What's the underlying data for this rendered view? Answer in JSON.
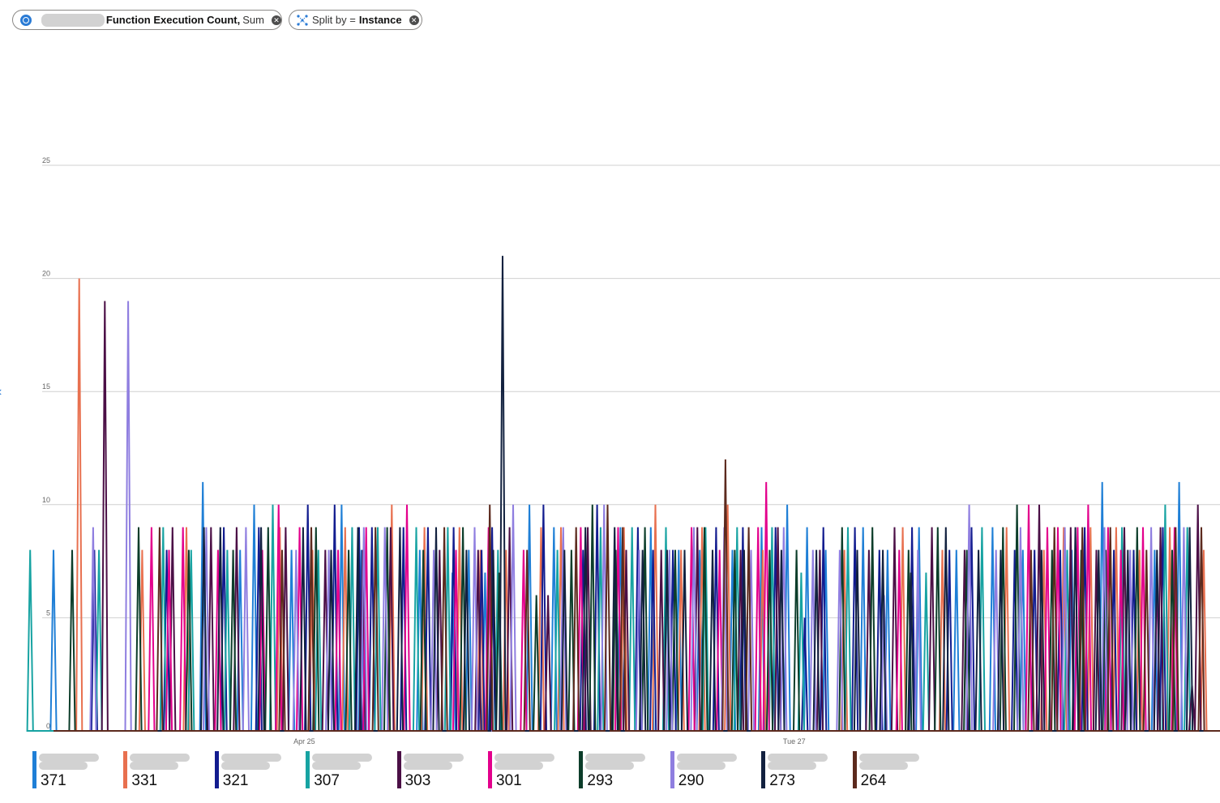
{
  "header": {
    "metric_pill": {
      "metric": "Function Execution Count,",
      "aggregation": "Sum"
    },
    "split_pill": {
      "prefix": "Split by =",
      "dimension": "Instance"
    }
  },
  "chart_data": {
    "type": "line",
    "ylim": [
      0,
      25
    ],
    "yticks": [
      0,
      5,
      10,
      15,
      20,
      25
    ],
    "xlim": [
      0,
      100
    ],
    "xticks": [
      {
        "x": 21.5,
        "label": "Apr 25"
      },
      {
        "x": 63.5,
        "label": "Tue 27"
      }
    ],
    "grid": true,
    "legend": "bottom",
    "series": [
      {
        "color": "#1f7fd6",
        "total": "371",
        "spikes": [
          [
            0,
            8
          ],
          [
            12.8,
            11
          ],
          [
            16,
            8
          ],
          [
            17.2,
            10
          ],
          [
            20.4,
            8
          ],
          [
            24.7,
            10
          ],
          [
            26.4,
            8
          ],
          [
            31.4,
            8
          ],
          [
            34.2,
            7
          ],
          [
            35.6,
            8
          ],
          [
            37,
            7
          ],
          [
            40.8,
            10
          ],
          [
            42.9,
            9
          ],
          [
            48.6,
            9
          ],
          [
            51.2,
            9
          ],
          [
            53.6,
            8
          ],
          [
            55.4,
            8
          ],
          [
            58.2,
            8
          ],
          [
            60.7,
            9
          ],
          [
            62.9,
            10
          ],
          [
            64.6,
            9
          ],
          [
            66.2,
            8
          ],
          [
            69.4,
            9
          ],
          [
            71.5,
            8
          ],
          [
            74.2,
            9
          ],
          [
            77.4,
            8
          ],
          [
            80.5,
            9
          ],
          [
            83.1,
            8
          ],
          [
            87.3,
            8
          ],
          [
            89.9,
            11
          ],
          [
            94.4,
            8
          ],
          [
            96.5,
            11
          ]
        ]
      },
      {
        "color": "#e8704f",
        "total": "331",
        "spikes": [
          [
            2.2,
            20
          ],
          [
            7.6,
            8
          ],
          [
            11.4,
            9
          ],
          [
            19.4,
            9
          ],
          [
            22.2,
            8
          ],
          [
            25,
            9
          ],
          [
            29,
            10
          ],
          [
            31.8,
            9
          ],
          [
            34.8,
            9
          ],
          [
            36.6,
            8
          ],
          [
            38.8,
            8
          ],
          [
            41.8,
            9
          ],
          [
            43.5,
            9
          ],
          [
            48.9,
            9
          ],
          [
            51.6,
            10
          ],
          [
            53.8,
            8
          ],
          [
            55.6,
            9
          ],
          [
            57.8,
            10
          ],
          [
            60.8,
            8
          ],
          [
            67.8,
            8
          ],
          [
            72.8,
            9
          ],
          [
            76.2,
            8
          ],
          [
            81.7,
            9
          ],
          [
            84.9,
            8
          ],
          [
            86.6,
            9
          ],
          [
            88.9,
            9
          ],
          [
            91.1,
            9
          ],
          [
            93.1,
            8
          ],
          [
            95.7,
            9
          ],
          [
            98.6,
            8
          ]
        ]
      },
      {
        "color": "#121c8f",
        "total": "321",
        "spikes": [
          [
            3.5,
            8
          ],
          [
            9.7,
            8
          ],
          [
            14.6,
            9
          ],
          [
            17.6,
            9
          ],
          [
            21.8,
            10
          ],
          [
            24.1,
            10
          ],
          [
            26.2,
            9
          ],
          [
            27.3,
            9
          ],
          [
            30,
            9
          ],
          [
            32.1,
            9
          ],
          [
            34.3,
            9
          ],
          [
            36.7,
            8
          ],
          [
            37.6,
            9
          ],
          [
            42,
            10
          ],
          [
            45.4,
            8
          ],
          [
            46.6,
            10
          ],
          [
            50.1,
            9
          ],
          [
            51.4,
            8
          ],
          [
            53.1,
            8
          ],
          [
            56.8,
            9
          ],
          [
            59.1,
            9
          ],
          [
            61.9,
            9
          ],
          [
            64.4,
            5
          ],
          [
            66,
            9
          ],
          [
            68.7,
            9
          ],
          [
            70.8,
            8
          ],
          [
            73.6,
            9
          ],
          [
            76.8,
            8
          ],
          [
            78.7,
            9
          ],
          [
            82.4,
            8
          ],
          [
            84.1,
            8
          ],
          [
            86.3,
            8
          ],
          [
            88.4,
            9
          ],
          [
            90.9,
            8
          ],
          [
            92.6,
            8
          ],
          [
            95.1,
            9
          ]
        ]
      },
      {
        "color": "#17a3a2",
        "total": "307",
        "spikes": [
          [
            -2,
            8
          ],
          [
            3.9,
            8
          ],
          [
            9.4,
            9
          ],
          [
            11.8,
            8
          ],
          [
            14.9,
            8
          ],
          [
            18.8,
            10
          ],
          [
            22.7,
            8
          ],
          [
            25.6,
            9
          ],
          [
            27.8,
            9
          ],
          [
            31.1,
            9
          ],
          [
            33.8,
            9
          ],
          [
            38.1,
            8
          ],
          [
            43.2,
            8
          ],
          [
            46.9,
            9
          ],
          [
            49.6,
            9
          ],
          [
            52.5,
            9
          ],
          [
            55.9,
            9
          ],
          [
            58.6,
            9
          ],
          [
            61.6,
            9
          ],
          [
            64.1,
            7
          ],
          [
            68.1,
            9
          ],
          [
            74.8,
            7
          ],
          [
            79.6,
            9
          ],
          [
            82.9,
            8
          ],
          [
            86.9,
            8
          ],
          [
            91.6,
            9
          ],
          [
            95.3,
            10
          ],
          [
            97.2,
            9
          ]
        ]
      },
      {
        "color": "#4b0f46",
        "total": "303",
        "spikes": [
          [
            4.4,
            19
          ],
          [
            10.2,
            9
          ],
          [
            13.5,
            9
          ],
          [
            15.7,
            9
          ],
          [
            19.9,
            9
          ],
          [
            23.3,
            8
          ],
          [
            26.5,
            8
          ],
          [
            28.9,
            9
          ],
          [
            33.1,
            8
          ],
          [
            36.4,
            8
          ],
          [
            39.1,
            9
          ],
          [
            42.4,
            6
          ],
          [
            45.8,
            9
          ],
          [
            49.1,
            8
          ],
          [
            52.1,
            8
          ],
          [
            55.2,
            9
          ],
          [
            58.9,
            8
          ],
          [
            62.1,
            9
          ],
          [
            65.7,
            8
          ],
          [
            69.9,
            8
          ],
          [
            72.1,
            9
          ],
          [
            75.3,
            9
          ],
          [
            78.1,
            8
          ],
          [
            84.5,
            10
          ],
          [
            87.2,
            9
          ],
          [
            89.4,
            8
          ],
          [
            91.8,
            9
          ],
          [
            94.9,
            9
          ],
          [
            97.6,
            2
          ],
          [
            98.1,
            10
          ]
        ]
      },
      {
        "color": "#e3008c",
        "total": "301",
        "spikes": [
          [
            8.4,
            9
          ],
          [
            9.9,
            8
          ],
          [
            11.1,
            9
          ],
          [
            14.1,
            8
          ],
          [
            17.9,
            8
          ],
          [
            19.3,
            10
          ],
          [
            21.1,
            9
          ],
          [
            24.4,
            8
          ],
          [
            26.8,
            9
          ],
          [
            30.3,
            10
          ],
          [
            34.5,
            8
          ],
          [
            37.3,
            9
          ],
          [
            40.3,
            8
          ],
          [
            45.2,
            9
          ],
          [
            48.4,
            9
          ],
          [
            54.7,
            9
          ],
          [
            57.1,
            8
          ],
          [
            60.4,
            9
          ],
          [
            61.1,
            11
          ],
          [
            72.5,
            8
          ],
          [
            83.6,
            10
          ],
          [
            85.2,
            9
          ],
          [
            86.1,
            9
          ],
          [
            87.8,
            9
          ],
          [
            88.7,
            10
          ],
          [
            90.4,
            9
          ],
          [
            91.5,
            8
          ],
          [
            93.4,
            9
          ],
          [
            94.6,
            7
          ],
          [
            96.1,
            9
          ]
        ]
      },
      {
        "color": "#0c3d2a",
        "total": "293",
        "spikes": [
          [
            1.6,
            8
          ],
          [
            7.3,
            9
          ],
          [
            11.6,
            8
          ],
          [
            15.4,
            8
          ],
          [
            18.4,
            9
          ],
          [
            22.5,
            9
          ],
          [
            25.3,
            8
          ],
          [
            28.6,
            9
          ],
          [
            31.7,
            8
          ],
          [
            35.1,
            9
          ],
          [
            38.2,
            7
          ],
          [
            41.4,
            6
          ],
          [
            44.4,
            8
          ],
          [
            46.2,
            10
          ],
          [
            48.2,
            8
          ],
          [
            50.7,
            9
          ],
          [
            53.3,
            8
          ],
          [
            55.8,
            9
          ],
          [
            58.4,
            8
          ],
          [
            61.4,
            8
          ],
          [
            63.7,
            8
          ],
          [
            67.6,
            9
          ],
          [
            70.2,
            9
          ],
          [
            73.3,
            8
          ],
          [
            75.8,
            9
          ],
          [
            78.3,
            8
          ],
          [
            81.4,
            9
          ],
          [
            82.6,
            10
          ],
          [
            85.6,
            8
          ],
          [
            88.1,
            8
          ],
          [
            90.2,
            8
          ],
          [
            92.9,
            9
          ],
          [
            95.9,
            8
          ]
        ]
      },
      {
        "color": "#8f7ee0",
        "total": "290",
        "spikes": [
          [
            3.4,
            9
          ],
          [
            6.4,
            19
          ],
          [
            13.1,
            9
          ],
          [
            16.5,
            9
          ],
          [
            20.8,
            8
          ],
          [
            23.6,
            8
          ],
          [
            26.6,
            9
          ],
          [
            28.4,
            9
          ],
          [
            32.6,
            8
          ],
          [
            36.1,
            9
          ],
          [
            39.4,
            10
          ],
          [
            43.7,
            9
          ],
          [
            47.2,
            10
          ],
          [
            50.2,
            8
          ],
          [
            52.8,
            8
          ],
          [
            54.9,
            9
          ],
          [
            57.5,
            9
          ],
          [
            59.8,
            8
          ],
          [
            62.6,
            9
          ],
          [
            65.1,
            8
          ],
          [
            67.4,
            8
          ],
          [
            71.2,
            6
          ],
          [
            74.1,
            8
          ],
          [
            78.5,
            10
          ],
          [
            80.8,
            8
          ],
          [
            82.9,
            9
          ],
          [
            86.7,
            9
          ],
          [
            90.1,
            9
          ],
          [
            92.3,
            8
          ],
          [
            94.1,
            9
          ],
          [
            96.9,
            9
          ]
        ]
      },
      {
        "color": "#12213f",
        "total": "273",
        "spikes": [
          [
            12.9,
            9
          ],
          [
            14.3,
            9
          ],
          [
            17.8,
            9
          ],
          [
            21.4,
            9
          ],
          [
            23.8,
            8
          ],
          [
            26.1,
            9
          ],
          [
            29.7,
            9
          ],
          [
            32.8,
            9
          ],
          [
            35.4,
            8
          ],
          [
            37.7,
            8
          ],
          [
            38.5,
            21
          ],
          [
            43.8,
            8
          ],
          [
            45.6,
            9
          ],
          [
            48.1,
            9
          ],
          [
            50.5,
            8
          ],
          [
            52.6,
            8
          ],
          [
            54.1,
            8
          ],
          [
            56.5,
            8
          ],
          [
            59.2,
            8
          ],
          [
            62.4,
            8
          ],
          [
            65.4,
            8
          ],
          [
            68.9,
            8
          ],
          [
            71.1,
            8
          ],
          [
            73.5,
            7
          ],
          [
            76.5,
            9
          ],
          [
            79.3,
            8
          ],
          [
            81.2,
            8
          ],
          [
            84.7,
            8
          ],
          [
            87.6,
            9
          ],
          [
            89.6,
            8
          ],
          [
            92.1,
            8
          ],
          [
            94.6,
            8
          ],
          [
            97.4,
            9
          ]
        ]
      },
      {
        "color": "#5c2a1e",
        "total": "264",
        "spikes": [
          [
            9.1,
            9
          ],
          [
            19.6,
            8
          ],
          [
            22.1,
            9
          ],
          [
            27.6,
            9
          ],
          [
            33.5,
            9
          ],
          [
            37.4,
            10
          ],
          [
            40.6,
            8
          ],
          [
            44.8,
            9
          ],
          [
            47.5,
            10
          ],
          [
            48.8,
            9
          ],
          [
            57.6,
            12
          ],
          [
            59.6,
            9
          ],
          [
            83.8,
            8
          ],
          [
            85.8,
            9
          ],
          [
            88.2,
            9
          ],
          [
            90.6,
            9
          ],
          [
            93.7,
            8
          ],
          [
            96.2,
            9
          ],
          [
            98.4,
            9
          ]
        ]
      }
    ]
  }
}
